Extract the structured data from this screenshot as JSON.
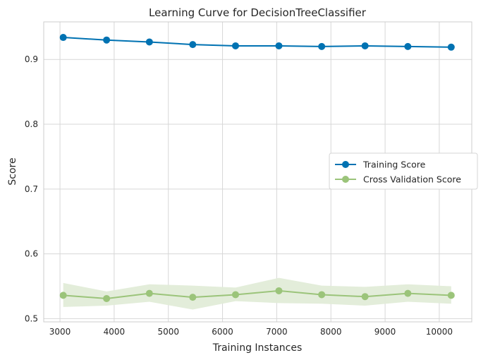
{
  "chart_data": {
    "type": "line",
    "title": "Learning Curve for DecisionTreeClassifier",
    "xlabel": "Training Instances",
    "ylabel": "Score",
    "xlim": [
      2700,
      10600
    ],
    "ylim": [
      0.495,
      0.958
    ],
    "xticks": [
      3000,
      4000,
      5000,
      6000,
      7000,
      8000,
      9000,
      10000
    ],
    "yticks": [
      0.5,
      0.6,
      0.7,
      0.8,
      0.9
    ],
    "grid": true,
    "legend_position": "center-right",
    "x": [
      3060,
      3860,
      4650,
      5450,
      6240,
      7040,
      7830,
      8630,
      9420,
      10220
    ],
    "series": [
      {
        "name": "Training Score",
        "color": "#0072b2",
        "values": [
          0.934,
          0.93,
          0.927,
          0.923,
          0.921,
          0.921,
          0.92,
          0.921,
          0.92,
          0.919
        ]
      },
      {
        "name": "Cross Validation Score",
        "color": "#9bc47a",
        "band_color": "#e2ecd8",
        "values": [
          0.536,
          0.531,
          0.539,
          0.533,
          0.537,
          0.543,
          0.537,
          0.534,
          0.539,
          0.536
        ],
        "band_low": [
          0.518,
          0.52,
          0.526,
          0.514,
          0.527,
          0.524,
          0.523,
          0.52,
          0.526,
          0.523
        ],
        "band_high": [
          0.555,
          0.542,
          0.553,
          0.551,
          0.548,
          0.563,
          0.551,
          0.549,
          0.553,
          0.55
        ]
      }
    ]
  }
}
